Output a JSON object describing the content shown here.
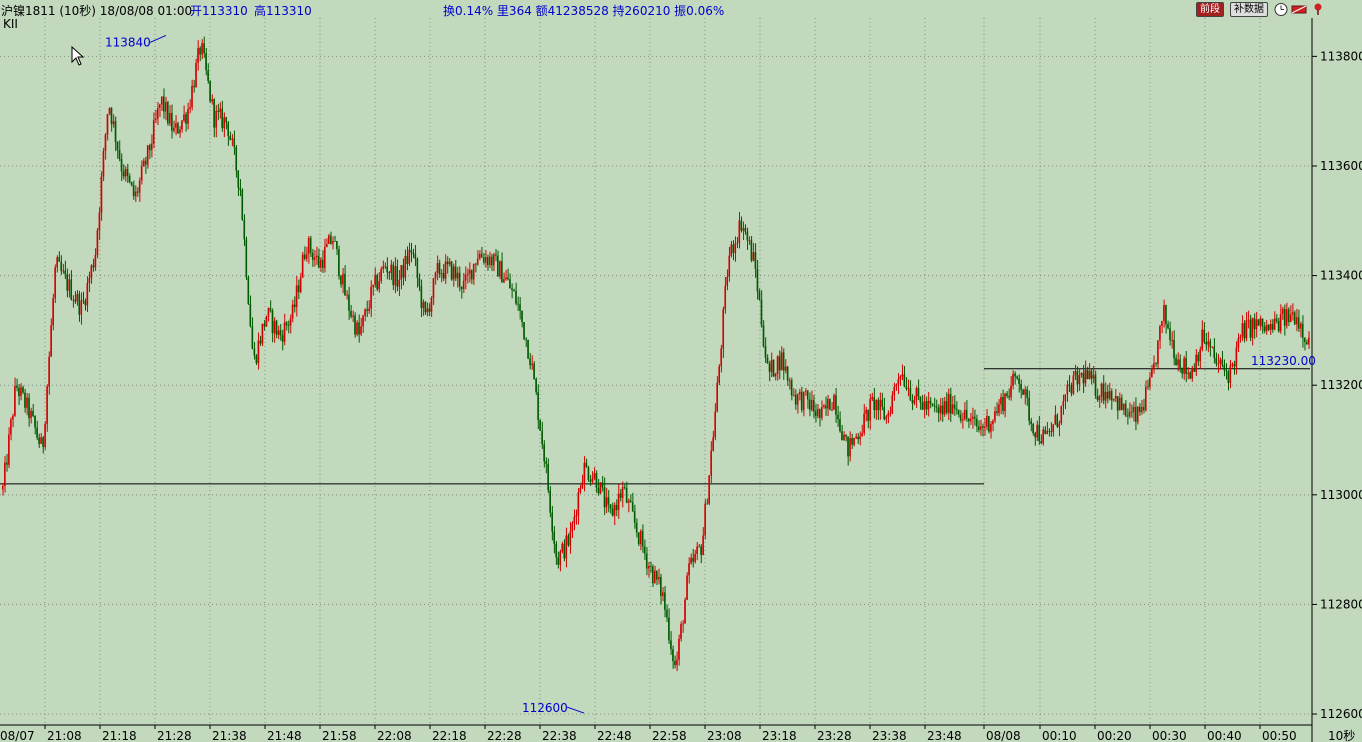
{
  "header": {
    "instrument": "沪镍1811 (10秒) 18/08/08 01:00",
    "open_label": "开113310",
    "high_label": "高113310",
    "stats": "换0.14% 里364 额41238528 持260210 振0.06%",
    "sub_label": "KII",
    "btn_back": "前段",
    "btn_fill": "补数据"
  },
  "colors": {
    "background": "#c2d9be",
    "up_candle": "#d40000",
    "down_candle": "#005a00",
    "grid": "#7f8f7f",
    "label_blue": "#0000cc"
  },
  "chart_data": {
    "type": "candlestick",
    "title": "",
    "xlabel": "",
    "ylabel": "",
    "ylim": [
      112580,
      113870
    ],
    "yticks": [
      113800,
      113600,
      113400,
      113200,
      113000,
      112800,
      112600
    ],
    "xticks": [
      "08/07",
      "21:08",
      "21:18",
      "21:28",
      "21:38",
      "21:48",
      "21:58",
      "22:08",
      "22:18",
      "22:28",
      "22:38",
      "22:48",
      "22:58",
      "23:08",
      "23:18",
      "23:28",
      "23:38",
      "23:48",
      "08/08",
      "00:10",
      "00:20",
      "00:30",
      "00:40",
      "00:50",
      "10秒"
    ],
    "annotations": {
      "high_label": "113840",
      "high_value": 113840,
      "low_label": "112600",
      "low_value": 112600,
      "current_label": "113230.00",
      "current_value": 113230,
      "prev_ref_value": 113020
    },
    "grid": true,
    "series": [
      {
        "values": [
          113010,
          113200,
          113150,
          113080,
          113420,
          113380,
          113340,
          113440,
          113720,
          113600,
          113540,
          113620,
          113720,
          113660,
          113700,
          113820,
          113690,
          113680,
          113560,
          113240,
          113330,
          113290,
          113330,
          113460,
          113420,
          113470,
          113360,
          113290,
          113370,
          113420,
          113390,
          113450,
          113320,
          113410,
          113410,
          113380,
          113440,
          113430,
          113400,
          113350,
          113250,
          113080,
          112880,
          112920,
          113050,
          113030,
          112960,
          113010,
          112940,
          112870,
          112820,
          112680,
          112860,
          112910,
          113150,
          113430,
          113500,
          113420,
          113220,
          113250,
          113180,
          113170,
          113140,
          113180,
          113080,
          113120,
          113170,
          113140,
          113230,
          113180,
          113160,
          113150,
          113170,
          113140,
          113120,
          113140,
          113180,
          113220,
          113130,
          113100,
          113140,
          113200,
          113220,
          113190,
          113190,
          113150,
          113140,
          113200,
          113330,
          113250,
          113220,
          113290,
          113240,
          113220,
          113300,
          113310,
          113300,
          113320,
          113330,
          113280
        ]
      }
    ]
  }
}
